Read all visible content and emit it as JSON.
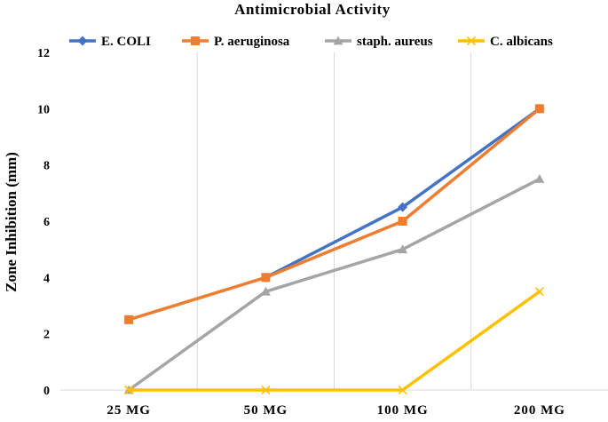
{
  "chart_data": {
    "type": "line",
    "title": "Antimicrobial Activity",
    "xlabel": "",
    "ylabel": "Zone Inhibition (mm)",
    "categories": [
      "25 MG",
      "50 MG",
      "100 MG",
      "200 MG"
    ],
    "ylim": [
      0,
      12
    ],
    "yticks": [
      "0",
      "2",
      "4",
      "6",
      "8",
      "10",
      "12"
    ],
    "grid": "vertical",
    "legend_position": "top",
    "series": [
      {
        "name": "E. COLI",
        "values": [
          null,
          4,
          6.5,
          10
        ],
        "color": "#4472C4",
        "marker": "diamond"
      },
      {
        "name": "P. aeruginosa",
        "values": [
          2.5,
          4,
          6,
          10
        ],
        "color": "#ED7D31",
        "marker": "square"
      },
      {
        "name": "staph. aureus",
        "values": [
          0,
          3.5,
          5,
          7.5
        ],
        "color": "#A5A5A5",
        "marker": "triangle"
      },
      {
        "name": "C. albicans",
        "values": [
          0,
          0,
          0,
          3.5
        ],
        "color": "#FFC000",
        "marker": "x"
      }
    ]
  }
}
